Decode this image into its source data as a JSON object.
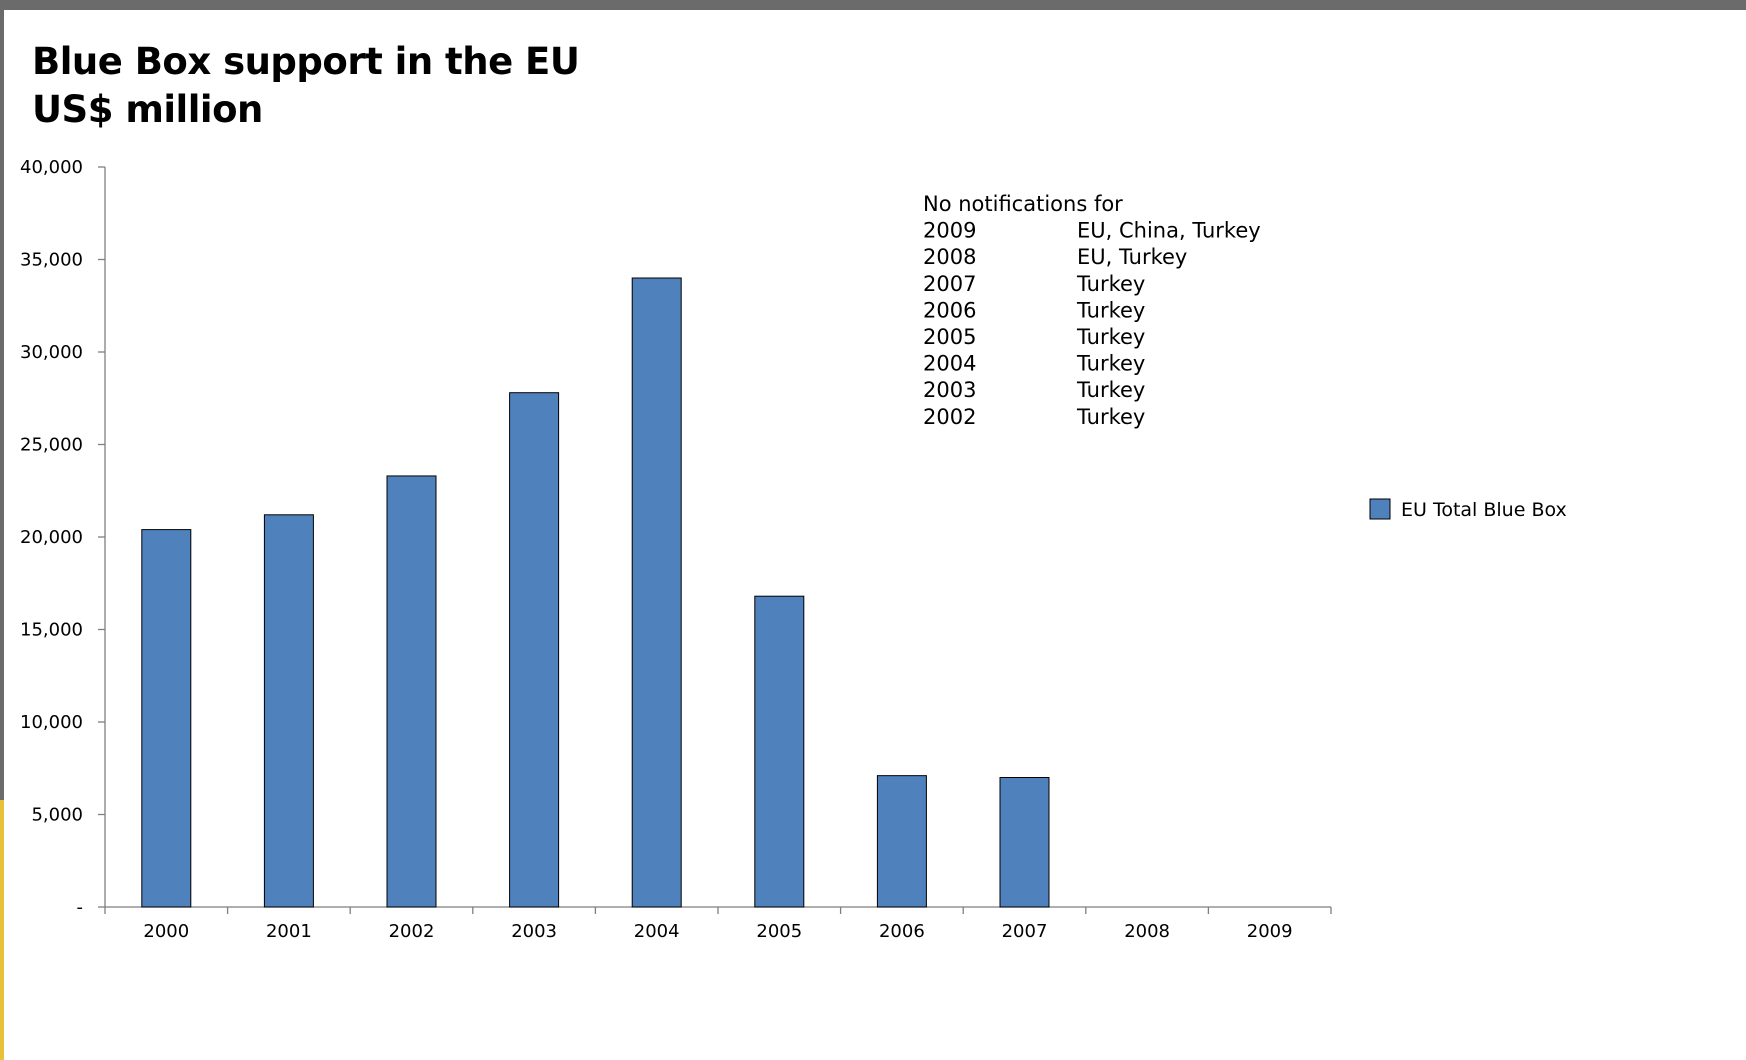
{
  "chart_data": {
    "type": "bar",
    "title": "Blue Box support in the EU",
    "subtitle": "US$ million",
    "categories": [
      "2000",
      "2001",
      "2002",
      "2003",
      "2004",
      "2005",
      "2006",
      "2007",
      "2008",
      "2009"
    ],
    "series": [
      {
        "name": "EU Total Blue Box",
        "color": "#4f81bd",
        "values": [
          20400,
          21200,
          23300,
          27800,
          34000,
          16800,
          7100,
          7000,
          0,
          0
        ]
      }
    ],
    "ylim": [
      0,
      40000
    ],
    "yticks": [
      0,
      5000,
      10000,
      15000,
      20000,
      25000,
      30000,
      35000,
      40000
    ],
    "ytick_labels": [
      "-",
      "5,000",
      "10,000",
      "15,000",
      "20,000",
      "25,000",
      "30,000",
      "35,000",
      "40,000"
    ],
    "legend_position": "right",
    "grid": false,
    "annotation": {
      "heading": "No notifications for",
      "rows": [
        {
          "year": "2009",
          "countries": "EU, China, Turkey"
        },
        {
          "year": "2008",
          "countries": "EU, Turkey"
        },
        {
          "year": "2007",
          "countries": "Turkey"
        },
        {
          "year": "2006",
          "countries": "Turkey"
        },
        {
          "year": "2005",
          "countries": "Turkey"
        },
        {
          "year": "2004",
          "countries": "Turkey"
        },
        {
          "year": "2003",
          "countries": "Turkey"
        },
        {
          "year": "2002",
          "countries": "Turkey"
        }
      ]
    }
  }
}
